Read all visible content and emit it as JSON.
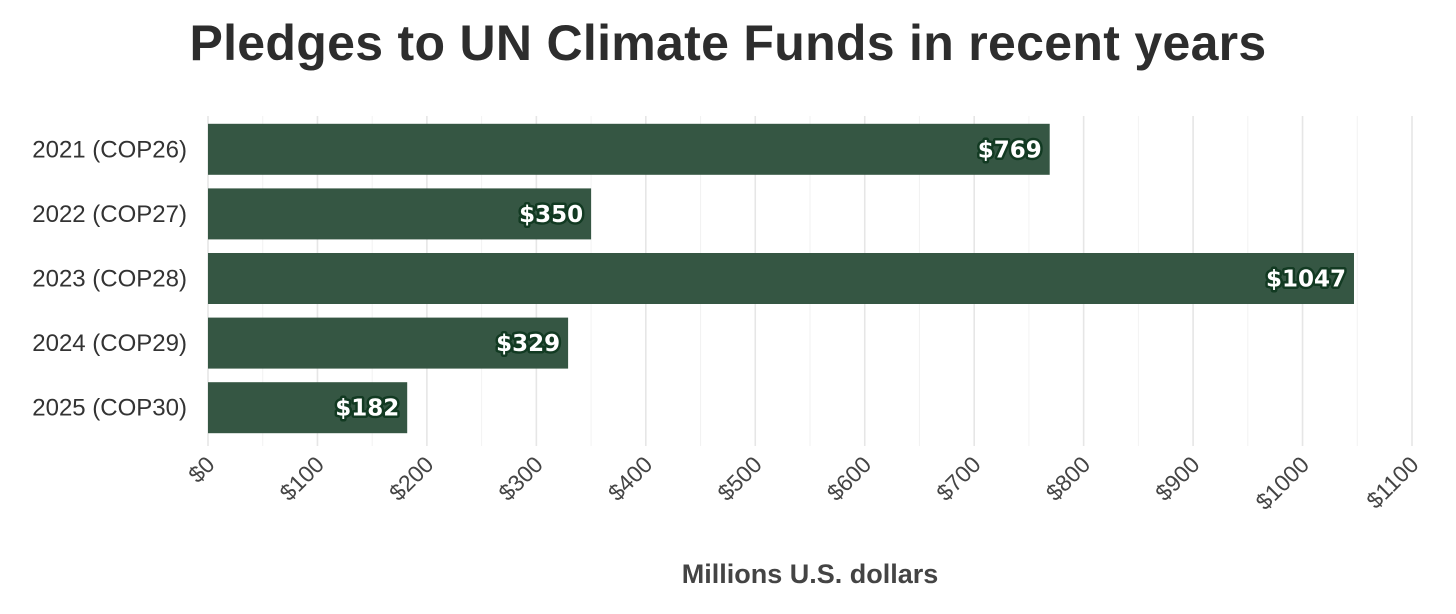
{
  "chart_data": {
    "type": "bar",
    "orientation": "horizontal",
    "title": "Pledges to UN Climate Funds in recent years",
    "xlabel": "Millions U.S. dollars",
    "ylabel": "",
    "categories": [
      "2021 (COP26)",
      "2022 (COP27)",
      "2023 (COP28)",
      "2024 (COP29)",
      "2025 (COP30)"
    ],
    "values": [
      769,
      350,
      1047,
      329,
      182
    ],
    "data_labels": [
      "$769",
      "$350",
      "$1047",
      "$329",
      "$182"
    ],
    "xlim": [
      0,
      1100
    ],
    "x_ticks": [
      0,
      100,
      200,
      300,
      400,
      500,
      600,
      700,
      800,
      900,
      1000,
      1100
    ],
    "x_tick_labels": [
      "$0",
      "$100",
      "$200",
      "$300",
      "$400",
      "$500",
      "$600",
      "$700",
      "$800",
      "$900",
      "$1000",
      "$1100"
    ],
    "grid": true,
    "legend": "none",
    "colors": {
      "bar": "#355643",
      "label_outline": "#123a22",
      "grid": "#e6e6e6"
    }
  }
}
